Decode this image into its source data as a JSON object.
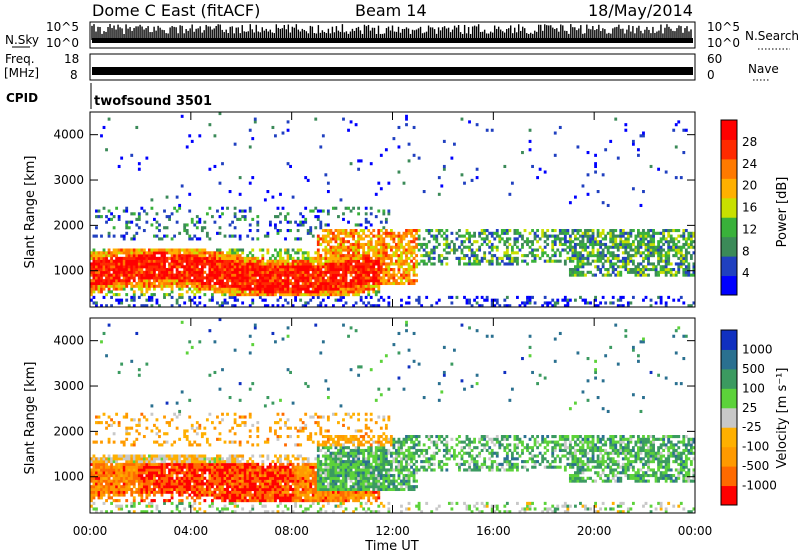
{
  "header": {
    "title": "Dome C East (fitACF)",
    "beam": "Beam 14",
    "date": "18/May/2014"
  },
  "sky_panel": {
    "left_label": "N.Sky",
    "left_top": "10^5",
    "left_bottom": "10^0",
    "right_top": "10^5",
    "right_bottom": "10^0",
    "right_label": "N.Search"
  },
  "freq_panel": {
    "left_label_line1": "Freq.",
    "left_label_line2": "[MHz]",
    "left_top": "18",
    "left_bottom": "8",
    "right_top": "60",
    "right_bottom": "0",
    "right_label": "Nave"
  },
  "cpid_panel": {
    "label": "CPID",
    "value": "twofsound 3501"
  },
  "colors": {
    "power": [
      "#0000ff",
      "#2040c0",
      "#3b8a58",
      "#39b13a",
      "#c8e000",
      "#ffb000",
      "#ff7a00",
      "#ff2a00",
      "#ff0000"
    ],
    "velocity": [
      "#ff0000",
      "#ff6a00",
      "#ff9a00",
      "#ffb000",
      "#c8c8c8",
      "#5cd23a",
      "#3b9a60",
      "#2a7090",
      "#1030c0"
    ]
  },
  "chart_data": [
    {
      "type": "heatmap",
      "name": "power",
      "ylabel": "Slant Range [km]",
      "yticks": [
        "1000",
        "2000",
        "3000",
        "4000"
      ],
      "ylim": [
        200,
        4500
      ],
      "xticks": [
        "00:00",
        "04:00",
        "08:00",
        "12:00",
        "16:00",
        "20:00",
        "00:00"
      ],
      "xlim_hours": [
        0,
        24
      ],
      "colorbar_label": "Power [dB]",
      "colorbar_ticks": [
        "4",
        "8",
        "12",
        "16",
        "20",
        "24",
        "28"
      ],
      "colorbar_range": [
        0,
        30
      ]
    },
    {
      "type": "heatmap",
      "name": "velocity",
      "ylabel": "Slant Range [km]",
      "yticks": [
        "1000",
        "2000",
        "3000",
        "4000"
      ],
      "ylim": [
        200,
        4500
      ],
      "xticks": [
        "00:00",
        "04:00",
        "08:00",
        "12:00",
        "16:00",
        "20:00",
        "00:00"
      ],
      "xlim_hours": [
        0,
        24
      ],
      "xlabel": "Time UT",
      "colorbar_label": "Velocity [m s⁻¹]",
      "colorbar_ticks": [
        "1000",
        "500",
        "100",
        "25",
        "-25",
        "-100",
        "-500",
        "-1000"
      ]
    }
  ]
}
